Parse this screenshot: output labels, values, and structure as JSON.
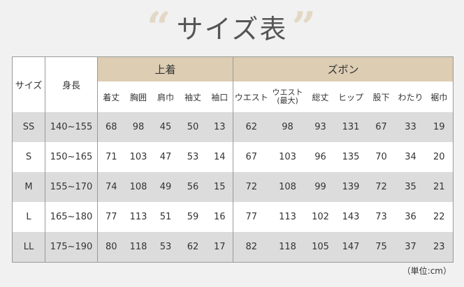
{
  "title": "サイズ表",
  "quote_open": "“",
  "quote_close": "”",
  "headers": {
    "size": "サイズ",
    "height": "身長",
    "jacket": "上着",
    "pants": "ズボン",
    "jacket_cols": [
      "着丈",
      "胸囲",
      "肩巾",
      "袖丈",
      "袖口"
    ],
    "pants_cols": [
      "ウエスト",
      "ウエスト\n(最大)",
      "総丈",
      "ヒップ",
      "股下",
      "わたり",
      "裾巾"
    ]
  },
  "rows": [
    {
      "size": "SS",
      "height": "140~155",
      "jacket": [
        "68",
        "98",
        "45",
        "50",
        "13"
      ],
      "pants": [
        "62",
        "98",
        "93",
        "131",
        "67",
        "33",
        "19"
      ]
    },
    {
      "size": "S",
      "height": "150~165",
      "jacket": [
        "71",
        "103",
        "47",
        "53",
        "14"
      ],
      "pants": [
        "67",
        "103",
        "96",
        "135",
        "70",
        "34",
        "20"
      ]
    },
    {
      "size": "M",
      "height": "155~170",
      "jacket": [
        "74",
        "108",
        "49",
        "56",
        "15"
      ],
      "pants": [
        "72",
        "108",
        "99",
        "139",
        "72",
        "35",
        "21"
      ]
    },
    {
      "size": "L",
      "height": "165~180",
      "jacket": [
        "77",
        "113",
        "51",
        "59",
        "16"
      ],
      "pants": [
        "77",
        "113",
        "102",
        "143",
        "73",
        "36",
        "22"
      ]
    },
    {
      "size": "LL",
      "height": "175~190",
      "jacket": [
        "80",
        "118",
        "53",
        "62",
        "17"
      ],
      "pants": [
        "82",
        "118",
        "105",
        "147",
        "75",
        "37",
        "23"
      ]
    }
  ],
  "unit": "（単位:cm）",
  "colors": {
    "header": "#dccdb3",
    "stripe": "#dcdcdc",
    "background": "#f1f1f1"
  }
}
